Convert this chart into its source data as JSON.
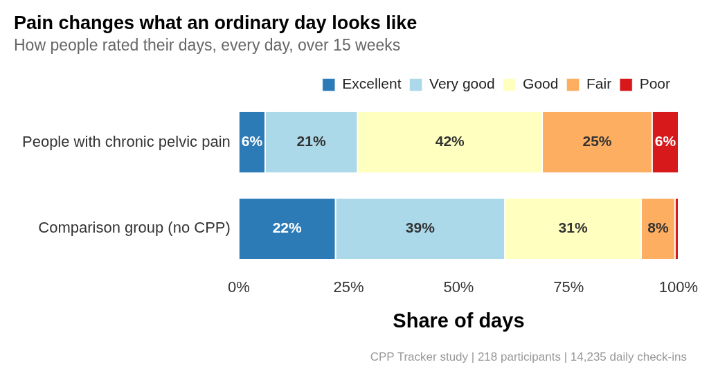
{
  "chart_data": {
    "type": "bar",
    "orientation": "horizontal",
    "stacked": true,
    "title": "Pain changes what an ordinary day looks like",
    "subtitle": "How people rated their days, every day, over 15 weeks",
    "xlabel": "Share of days",
    "categories": [
      "People with chronic pelvic pain",
      "Comparison group (no CPP)"
    ],
    "series": [
      {
        "name": "Excellent",
        "color": "#2c7bb6",
        "values": [
          6,
          22
        ],
        "value_labels": [
          "6%",
          "22%"
        ]
      },
      {
        "name": "Very good",
        "color": "#abd9e9",
        "values": [
          21,
          38.5
        ],
        "value_labels": [
          "21%",
          "39%"
        ]
      },
      {
        "name": "Good",
        "color": "#ffffbf",
        "values": [
          42,
          31
        ],
        "value_labels": [
          "42%",
          "31%"
        ]
      },
      {
        "name": "Fair",
        "color": "#fdae61",
        "values": [
          25,
          7.7
        ],
        "value_labels": [
          "25%",
          "8%"
        ]
      },
      {
        "name": "Poor",
        "color": "#d7191c",
        "values": [
          6,
          0.8
        ],
        "value_labels": [
          "6%",
          null
        ]
      }
    ],
    "xlim": [
      0,
      100
    ],
    "xticks": [
      {
        "value": 0,
        "label": "0%"
      },
      {
        "value": 25,
        "label": "25%"
      },
      {
        "value": 50,
        "label": "50%"
      },
      {
        "value": 75,
        "label": "75%"
      },
      {
        "value": 100,
        "label": "100%"
      }
    ],
    "grid": false,
    "legend": "top right",
    "annotations": [
      "CPP Tracker study | 218 participants | 14,235 daily check-ins"
    ]
  }
}
